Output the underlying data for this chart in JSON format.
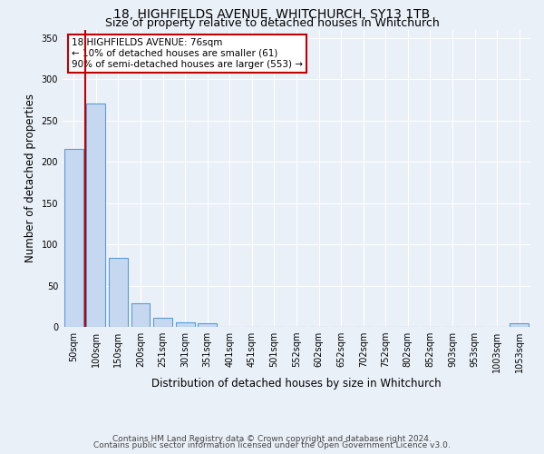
{
  "title": "18, HIGHFIELDS AVENUE, WHITCHURCH, SY13 1TB",
  "subtitle": "Size of property relative to detached houses in Whitchurch",
  "xlabel": "Distribution of detached houses by size in Whitchurch",
  "ylabel": "Number of detached properties",
  "footer_line1": "Contains HM Land Registry data © Crown copyright and database right 2024.",
  "footer_line2": "Contains public sector information licensed under the Open Government Licence v3.0.",
  "bin_labels": [
    "50sqm",
    "100sqm",
    "150sqm",
    "200sqm",
    "251sqm",
    "301sqm",
    "351sqm",
    "401sqm",
    "451sqm",
    "501sqm",
    "552sqm",
    "602sqm",
    "652sqm",
    "702sqm",
    "752sqm",
    "802sqm",
    "852sqm",
    "903sqm",
    "953sqm",
    "1003sqm",
    "1053sqm"
  ],
  "bin_values": [
    216,
    270,
    84,
    29,
    11,
    5,
    4,
    0,
    0,
    0,
    0,
    0,
    0,
    0,
    0,
    0,
    0,
    0,
    0,
    0,
    4
  ],
  "bar_color": "#c5d8f0",
  "bar_edge_color": "#5b9bd5",
  "vline_x_index": 0.52,
  "vline_color": "#c00000",
  "annotation_text": "18 HIGHFIELDS AVENUE: 76sqm\n← 10% of detached houses are smaller (61)\n90% of semi-detached houses are larger (553) →",
  "annotation_box_color": "#ffffff",
  "annotation_border_color": "#c00000",
  "ylim": [
    0,
    360
  ],
  "yticks": [
    0,
    50,
    100,
    150,
    200,
    250,
    300,
    350
  ],
  "bg_color": "#eaf0f8",
  "plot_bg_color": "#eaf0f8",
  "grid_color": "#ffffff",
  "title_fontsize": 10,
  "subtitle_fontsize": 9,
  "axis_label_fontsize": 8.5,
  "tick_fontsize": 7,
  "footer_fontsize": 6.5,
  "annotation_fontsize": 7.5
}
